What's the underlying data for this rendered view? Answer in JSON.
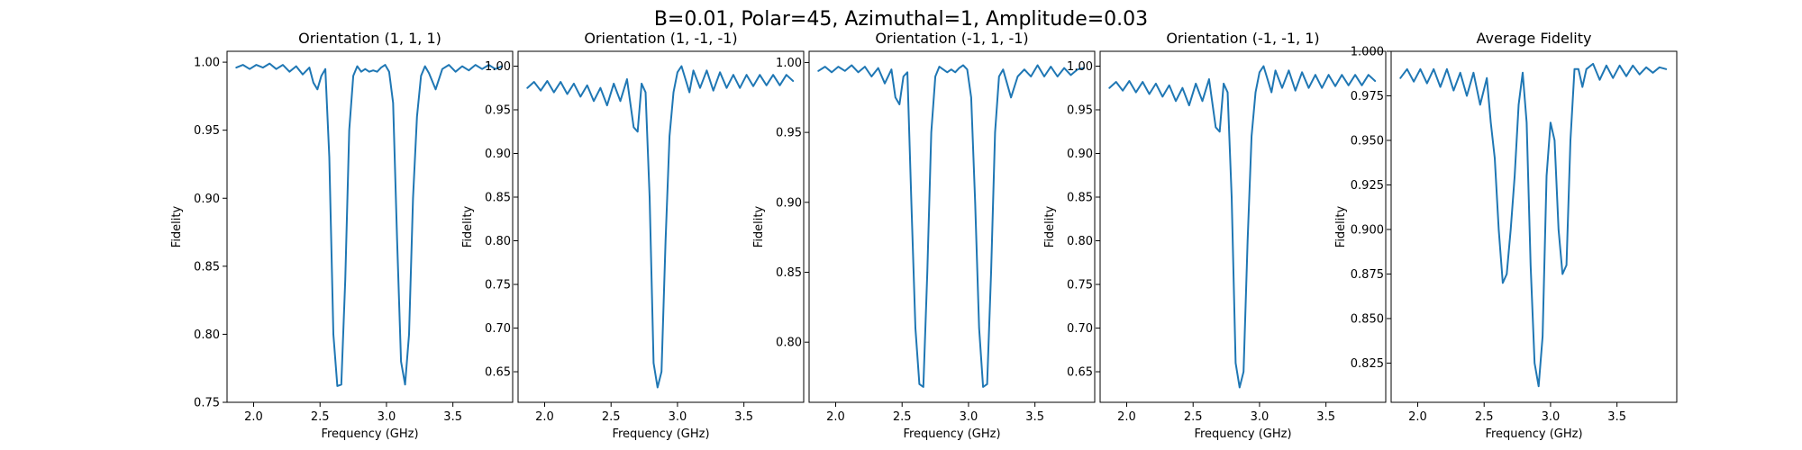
{
  "figure": {
    "suptitle": "B=0.01, Polar=45, Azimuthal=1, Amplitude=0.03"
  },
  "colors": {
    "line": "#1f77b4"
  },
  "chart_data": [
    {
      "type": "line",
      "title": "Orientation (1, 1, 1)",
      "xlabel": "Frequency (GHz)",
      "ylabel": "Fidelity",
      "xlim": [
        1.8,
        3.95
      ],
      "ylim": [
        0.75,
        1.008
      ],
      "xticks": [
        2.0,
        2.5,
        3.0,
        3.5
      ],
      "xtick_labels": [
        "2.0",
        "2.5",
        "3.0",
        "3.5"
      ],
      "yticks": [
        0.75,
        0.8,
        0.85,
        0.9,
        0.95,
        1.0
      ],
      "ytick_labels": [
        "0.75",
        "0.80",
        "0.85",
        "0.90",
        "0.95",
        "1.00"
      ],
      "grid": false,
      "series": [
        {
          "x": [
            1.87,
            1.92,
            1.97,
            2.02,
            2.07,
            2.12,
            2.17,
            2.22,
            2.27,
            2.32,
            2.37,
            2.42,
            2.45,
            2.48,
            2.51,
            2.54,
            2.57,
            2.6,
            2.63,
            2.66,
            2.69,
            2.72,
            2.75,
            2.78,
            2.81,
            2.84,
            2.87,
            2.9,
            2.93,
            2.96,
            2.99,
            3.02,
            3.05,
            3.08,
            3.11,
            3.14,
            3.17,
            3.2,
            3.23,
            3.26,
            3.29,
            3.32,
            3.37,
            3.42,
            3.47,
            3.52,
            3.57,
            3.62,
            3.67,
            3.72,
            3.77,
            3.82,
            3.87
          ],
          "y": [
            0.996,
            0.998,
            0.995,
            0.998,
            0.996,
            0.999,
            0.995,
            0.998,
            0.993,
            0.997,
            0.991,
            0.996,
            0.985,
            0.98,
            0.99,
            0.995,
            0.93,
            0.8,
            0.762,
            0.763,
            0.84,
            0.95,
            0.99,
            0.997,
            0.993,
            0.995,
            0.993,
            0.994,
            0.993,
            0.996,
            0.998,
            0.993,
            0.97,
            0.87,
            0.78,
            0.763,
            0.8,
            0.9,
            0.96,
            0.99,
            0.997,
            0.992,
            0.98,
            0.995,
            0.998,
            0.993,
            0.997,
            0.994,
            0.998,
            0.995,
            0.998,
            0.995,
            0.997
          ]
        }
      ]
    },
    {
      "type": "line",
      "title": "Orientation (1, -1, -1)",
      "xlabel": "Frequency (GHz)",
      "ylabel": "Fidelity",
      "xlim": [
        1.8,
        3.95
      ],
      "ylim": [
        0.615,
        1.017
      ],
      "xticks": [
        2.0,
        2.5,
        3.0,
        3.5
      ],
      "xtick_labels": [
        "2.0",
        "2.5",
        "3.0",
        "3.5"
      ],
      "yticks": [
        0.65,
        0.7,
        0.75,
        0.8,
        0.85,
        0.9,
        0.95,
        1.0
      ],
      "ytick_labels": [
        "0.65",
        "0.70",
        "0.75",
        "0.80",
        "0.85",
        "0.90",
        "0.95",
        "1.00"
      ],
      "grid": false,
      "series": [
        {
          "x": [
            1.87,
            1.92,
            1.97,
            2.02,
            2.07,
            2.12,
            2.17,
            2.22,
            2.27,
            2.32,
            2.37,
            2.42,
            2.47,
            2.52,
            2.57,
            2.62,
            2.67,
            2.7,
            2.73,
            2.76,
            2.79,
            2.82,
            2.85,
            2.88,
            2.91,
            2.94,
            2.97,
            3.0,
            3.03,
            3.06,
            3.09,
            3.12,
            3.17,
            3.22,
            3.27,
            3.32,
            3.37,
            3.42,
            3.47,
            3.52,
            3.57,
            3.62,
            3.67,
            3.72,
            3.77,
            3.82,
            3.87
          ],
          "y": [
            0.975,
            0.982,
            0.972,
            0.983,
            0.97,
            0.982,
            0.968,
            0.98,
            0.965,
            0.978,
            0.96,
            0.975,
            0.955,
            0.98,
            0.96,
            0.985,
            0.93,
            0.925,
            0.98,
            0.97,
            0.85,
            0.66,
            0.632,
            0.65,
            0.8,
            0.92,
            0.97,
            0.993,
            1.0,
            0.985,
            0.97,
            0.995,
            0.975,
            0.995,
            0.972,
            0.993,
            0.975,
            0.99,
            0.975,
            0.99,
            0.977,
            0.99,
            0.978,
            0.99,
            0.978,
            0.99,
            0.983
          ]
        }
      ]
    },
    {
      "type": "line",
      "title": "Orientation (-1, 1, -1)",
      "xlabel": "Frequency (GHz)",
      "ylabel": "Fidelity",
      "xlim": [
        1.8,
        3.95
      ],
      "ylim": [
        0.757,
        1.008
      ],
      "xticks": [
        2.0,
        2.5,
        3.0,
        3.5
      ],
      "xtick_labels": [
        "2.0",
        "2.5",
        "3.0",
        "3.5"
      ],
      "yticks": [
        0.8,
        0.85,
        0.9,
        0.95,
        1.0
      ],
      "ytick_labels": [
        "0.80",
        "0.85",
        "0.90",
        "0.95",
        "1.00"
      ],
      "grid": false,
      "series": [
        {
          "x": [
            1.87,
            1.92,
            1.97,
            2.02,
            2.07,
            2.12,
            2.17,
            2.22,
            2.27,
            2.32,
            2.37,
            2.42,
            2.45,
            2.48,
            2.51,
            2.54,
            2.57,
            2.6,
            2.63,
            2.66,
            2.69,
            2.72,
            2.75,
            2.78,
            2.81,
            2.84,
            2.87,
            2.9,
            2.93,
            2.96,
            2.99,
            3.02,
            3.05,
            3.08,
            3.11,
            3.14,
            3.17,
            3.2,
            3.23,
            3.26,
            3.29,
            3.32,
            3.37,
            3.42,
            3.47,
            3.52,
            3.57,
            3.62,
            3.67,
            3.72,
            3.77,
            3.82,
            3.87
          ],
          "y": [
            0.994,
            0.997,
            0.993,
            0.997,
            0.994,
            0.998,
            0.993,
            0.997,
            0.99,
            0.996,
            0.985,
            0.995,
            0.975,
            0.97,
            0.99,
            0.993,
            0.9,
            0.81,
            0.77,
            0.768,
            0.85,
            0.95,
            0.99,
            0.997,
            0.995,
            0.993,
            0.995,
            0.993,
            0.996,
            0.998,
            0.995,
            0.975,
            0.9,
            0.81,
            0.768,
            0.77,
            0.85,
            0.95,
            0.99,
            0.995,
            0.985,
            0.975,
            0.99,
            0.995,
            0.99,
            0.998,
            0.99,
            0.997,
            0.99,
            0.996,
            0.991,
            0.995,
            0.996
          ]
        }
      ]
    },
    {
      "type": "line",
      "title": "Orientation (-1, -1, 1)",
      "xlabel": "Frequency (GHz)",
      "ylabel": "Fidelity",
      "xlim": [
        1.8,
        3.95
      ],
      "ylim": [
        0.615,
        1.017
      ],
      "xticks": [
        2.0,
        2.5,
        3.0,
        3.5
      ],
      "xtick_labels": [
        "2.0",
        "2.5",
        "3.0",
        "3.5"
      ],
      "yticks": [
        0.65,
        0.7,
        0.75,
        0.8,
        0.85,
        0.9,
        0.95,
        1.0
      ],
      "ytick_labels": [
        "0.65",
        "0.70",
        "0.75",
        "0.80",
        "0.85",
        "0.90",
        "0.95",
        "1.00"
      ],
      "grid": false,
      "series": [
        {
          "x": [
            1.87,
            1.92,
            1.97,
            2.02,
            2.07,
            2.12,
            2.17,
            2.22,
            2.27,
            2.32,
            2.37,
            2.42,
            2.47,
            2.52,
            2.57,
            2.62,
            2.67,
            2.7,
            2.73,
            2.76,
            2.79,
            2.82,
            2.85,
            2.88,
            2.91,
            2.94,
            2.97,
            3.0,
            3.03,
            3.06,
            3.09,
            3.12,
            3.17,
            3.22,
            3.27,
            3.32,
            3.37,
            3.42,
            3.47,
            3.52,
            3.57,
            3.62,
            3.67,
            3.72,
            3.77,
            3.82,
            3.87
          ],
          "y": [
            0.975,
            0.982,
            0.972,
            0.983,
            0.97,
            0.982,
            0.968,
            0.98,
            0.965,
            0.978,
            0.96,
            0.975,
            0.955,
            0.98,
            0.96,
            0.985,
            0.93,
            0.925,
            0.98,
            0.97,
            0.85,
            0.66,
            0.632,
            0.65,
            0.8,
            0.92,
            0.97,
            0.993,
            1.0,
            0.985,
            0.97,
            0.995,
            0.975,
            0.995,
            0.972,
            0.993,
            0.975,
            0.99,
            0.975,
            0.99,
            0.977,
            0.99,
            0.978,
            0.99,
            0.978,
            0.99,
            0.983
          ]
        }
      ]
    },
    {
      "type": "line",
      "title": "Average Fidelity",
      "xlabel": "Frequency (GHz)",
      "ylabel": "Fidelity",
      "xlim": [
        1.8,
        3.95
      ],
      "ylim": [
        0.803,
        1.0
      ],
      "xticks": [
        2.0,
        2.5,
        3.0,
        3.5
      ],
      "xtick_labels": [
        "2.0",
        "2.5",
        "3.0",
        "3.5"
      ],
      "yticks": [
        0.825,
        0.85,
        0.875,
        0.9,
        0.925,
        0.95,
        0.975,
        1.0
      ],
      "ytick_labels": [
        "0.825",
        "0.850",
        "0.875",
        "0.900",
        "0.925",
        "0.950",
        "0.975",
        "1.000"
      ],
      "grid": false,
      "series": [
        {
          "x": [
            1.87,
            1.92,
            1.97,
            2.02,
            2.07,
            2.12,
            2.17,
            2.22,
            2.27,
            2.32,
            2.37,
            2.42,
            2.47,
            2.52,
            2.55,
            2.58,
            2.61,
            2.64,
            2.67,
            2.7,
            2.73,
            2.76,
            2.79,
            2.82,
            2.85,
            2.88,
            2.91,
            2.94,
            2.97,
            3.0,
            3.03,
            3.06,
            3.09,
            3.12,
            3.15,
            3.18,
            3.21,
            3.24,
            3.27,
            3.32,
            3.37,
            3.42,
            3.47,
            3.52,
            3.57,
            3.62,
            3.67,
            3.72,
            3.77,
            3.82,
            3.87
          ],
          "y": [
            0.985,
            0.99,
            0.983,
            0.99,
            0.982,
            0.99,
            0.98,
            0.99,
            0.978,
            0.988,
            0.975,
            0.988,
            0.97,
            0.985,
            0.96,
            0.94,
            0.9,
            0.87,
            0.875,
            0.9,
            0.93,
            0.97,
            0.988,
            0.96,
            0.88,
            0.825,
            0.812,
            0.84,
            0.93,
            0.96,
            0.95,
            0.9,
            0.875,
            0.88,
            0.95,
            0.99,
            0.99,
            0.98,
            0.99,
            0.993,
            0.984,
            0.992,
            0.985,
            0.992,
            0.986,
            0.992,
            0.987,
            0.991,
            0.988,
            0.991,
            0.99
          ]
        }
      ]
    }
  ]
}
